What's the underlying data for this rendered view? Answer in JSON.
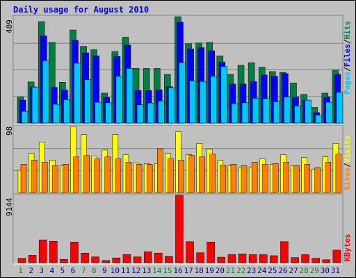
{
  "chart_data": [
    {
      "type": "bar",
      "title": "Daily usage for August 2010",
      "ymax_label": "409",
      "ymax": 409,
      "legend": [
        "Pages",
        "Files",
        "Hits"
      ],
      "legend_colors": {
        "Pages": "#00c8ff",
        "Files": "#0000ff",
        "Hits": "#008040"
      },
      "categories": [
        "1",
        "2",
        "3",
        "4",
        "5",
        "6",
        "7",
        "8",
        "9",
        "10",
        "11",
        "12",
        "13",
        "14",
        "15",
        "16",
        "17",
        "18",
        "19",
        "20",
        "21",
        "22",
        "23",
        "24",
        "25",
        "26",
        "27",
        "28",
        "29",
        "30",
        "31"
      ],
      "series": [
        {
          "name": "Hits",
          "color": "#008040",
          "values": [
            100,
            158,
            390,
            310,
            157,
            358,
            295,
            282,
            115,
            275,
            330,
            210,
            210,
            210,
            187,
            409,
            305,
            308,
            310,
            258,
            187,
            222,
            232,
            215,
            198,
            195,
            154,
            110,
            60,
            115,
            204
          ]
        },
        {
          "name": "Files",
          "color": "#0000ff",
          "values": [
            88,
            139,
            335,
            137,
            127,
            318,
            270,
            258,
            98,
            256,
            300,
            125,
            125,
            128,
            140,
            388,
            285,
            290,
            278,
            235,
            150,
            150,
            160,
            185,
            180,
            190,
            100,
            88,
            40,
            100,
            187
          ]
        },
        {
          "name": "Pages",
          "color": "#00c8ff",
          "values": [
            45,
            138,
            240,
            72,
            90,
            230,
            167,
            80,
            78,
            180,
            210,
            70,
            77,
            85,
            136,
            232,
            162,
            160,
            180,
            217,
            75,
            78,
            95,
            94,
            82,
            100,
            66,
            88,
            30,
            80,
            118
          ]
        }
      ]
    },
    {
      "type": "bar",
      "ymax_label": "98",
      "ymax": 98,
      "legend": [
        "Sites",
        "Visits"
      ],
      "legend_colors": {
        "Sites": "#ff8000",
        "Visits": "#ffff00"
      },
      "series": [
        {
          "name": "Visits",
          "color": "#ffff00",
          "values": [
            33,
            58,
            75,
            48,
            40,
            98,
            86,
            54,
            63,
            86,
            56,
            44,
            43,
            43,
            58,
            90,
            56,
            73,
            64,
            48,
            40,
            38,
            38,
            50,
            42,
            56,
            40,
            52,
            34,
            53,
            73
          ]
        },
        {
          "name": "Sites",
          "color": "#ff8000",
          "values": [
            42,
            48,
            45,
            40,
            42,
            53,
            55,
            50,
            53,
            50,
            45,
            42,
            42,
            65,
            50,
            48,
            55,
            53,
            57,
            41,
            42,
            40,
            45,
            42,
            43,
            45,
            40,
            42,
            37,
            45,
            57
          ]
        }
      ]
    },
    {
      "type": "bar",
      "ymax_label": "9144",
      "ymax": 9144,
      "legend": [
        "KBytes"
      ],
      "legend_colors": {
        "KBytes": "#ff0000"
      },
      "series": [
        {
          "name": "KBytes",
          "color": "#ff0000",
          "values": [
            600,
            1000,
            3100,
            2900,
            450,
            2800,
            1300,
            800,
            300,
            650,
            1100,
            800,
            1500,
            1300,
            880,
            9144,
            2850,
            1350,
            2800,
            750,
            1100,
            1200,
            1100,
            1100,
            950,
            2850,
            700,
            1100,
            600,
            400,
            1700
          ]
        }
      ]
    }
  ],
  "weekend_days": [
    1,
    7,
    8,
    14,
    15,
    21,
    22,
    28,
    29
  ],
  "day_colors": {
    "weekday": "#000080",
    "weekend": "#008040"
  },
  "title_color": "#0000ff"
}
